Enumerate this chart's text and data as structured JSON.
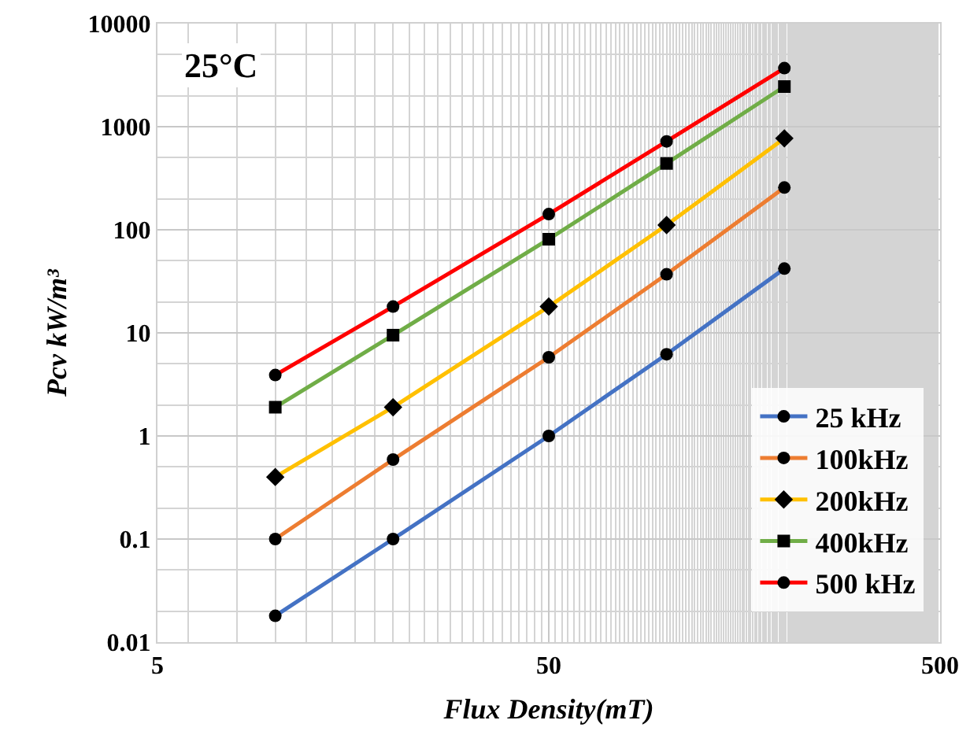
{
  "chart_data": {
    "type": "line",
    "title": "25°C",
    "xlabel": "Flux Density(mT)",
    "ylabel": "Pcv kW/m³",
    "log": "xy",
    "grid": true,
    "legend": "bottom right",
    "line_style": "solid",
    "x": [
      10,
      20,
      50,
      100,
      200
    ],
    "xlim": [
      5,
      500
    ],
    "xticks": [
      5,
      50,
      500
    ],
    "ylim": [
      0.01,
      10000
    ],
    "yticks": [
      0.01,
      0.1,
      1,
      10,
      100,
      1000,
      10000
    ],
    "series": [
      {
        "name": "25 kHz",
        "color": "#4472c4",
        "marker": "circle",
        "values": [
          0.018,
          0.1,
          1.0,
          6.2,
          42
        ]
      },
      {
        "name": "100kHz",
        "color": "#ed7d31",
        "marker": "circle",
        "values": [
          0.1,
          0.59,
          5.8,
          37,
          257
        ]
      },
      {
        "name": "200kHz",
        "color": "#ffc000",
        "marker": "diamond",
        "values": [
          0.4,
          1.9,
          18,
          111,
          770
        ]
      },
      {
        "name": "400kHz",
        "color": "#70ad47",
        "marker": "square",
        "values": [
          1.9,
          9.5,
          81,
          440,
          2450
        ]
      },
      {
        "name": "500 kHz",
        "color": "#ff0000",
        "marker": "circle",
        "values": [
          3.9,
          18,
          142,
          720,
          3700
        ]
      }
    ]
  }
}
